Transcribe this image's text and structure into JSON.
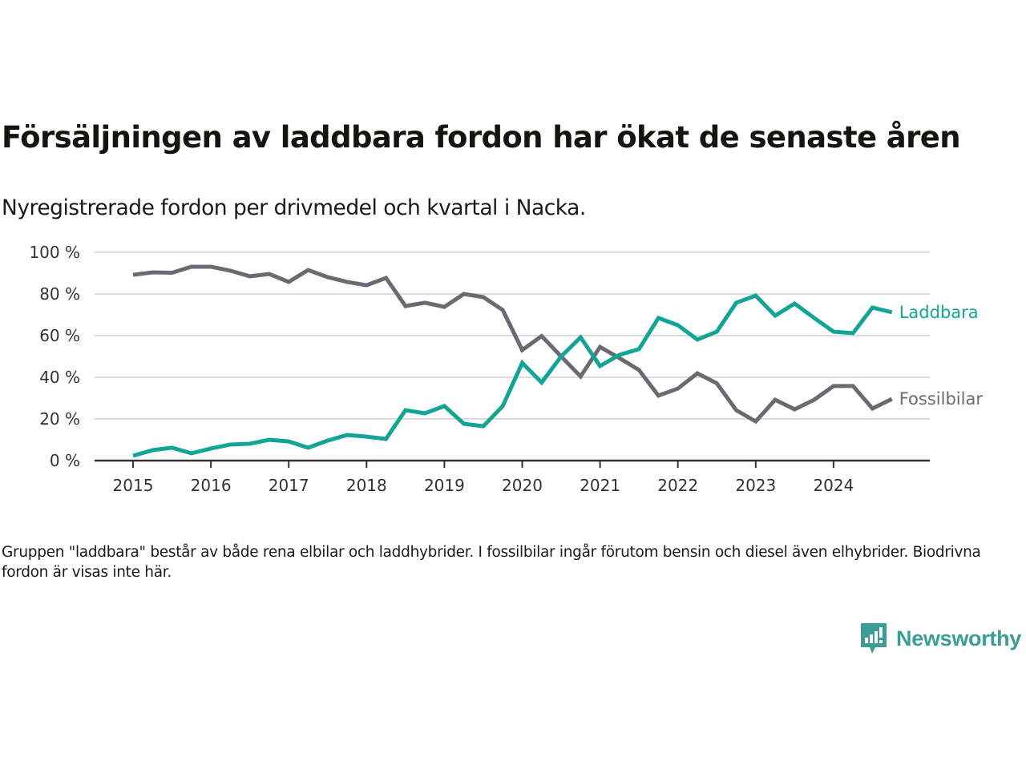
{
  "header": {
    "title": "Försäljningen av laddbara fordon har ökat de senaste åren",
    "subtitle": "Nyregistrerade fordon per drivmedel och kvartal i Nacka."
  },
  "footnote": "Gruppen \"laddbara\" består av både rena elbilar och laddhybrider. I fossilbilar ingår förutom bensin och diesel även elhybrider. Biodrivna fordon är visas inte här.",
  "logo": {
    "text": "Newsworthy",
    "icon": "newsworthy-logo-icon",
    "color": "#3a9e96"
  },
  "chart_data": {
    "type": "line",
    "title": "Försäljningen av laddbara fordon har ökat de senaste åren",
    "subtitle": "Nyregistrerade fordon per drivmedel och kvartal i Nacka.",
    "xlabel": "",
    "ylabel": "",
    "x_start": 2015,
    "x_step_per_point": 0.25,
    "x_ticks": [
      "2015",
      "2016",
      "2017",
      "2018",
      "2019",
      "2020",
      "2021",
      "2022",
      "2023",
      "2024"
    ],
    "x_range": [
      2014.5,
      2025.2
    ],
    "y_ticks": [
      "0 %",
      "20 %",
      "40 %",
      "60 %",
      "80 %",
      "100 %"
    ],
    "y_tick_values": [
      0,
      20,
      40,
      60,
      80,
      100
    ],
    "ylim": [
      0,
      100
    ],
    "grid": true,
    "legend": "inline-right",
    "series": [
      {
        "name": "Fossilbilar",
        "color": "#6b6a72",
        "values": [
          89.2,
          90.4,
          90.2,
          93.1,
          93.1,
          91.2,
          88.5,
          89.6,
          85.8,
          91.5,
          88.1,
          85.8,
          84.2,
          87.7,
          74.2,
          75.8,
          73.8,
          80.0,
          78.5,
          72.3,
          53.1,
          59.8,
          50.0,
          40.4,
          54.6,
          49.2,
          43.5,
          31.2,
          34.6,
          41.9,
          37.1,
          24.2,
          18.8,
          29.2,
          24.6,
          29.2,
          35.8,
          35.8,
          25.0,
          29.6
        ]
      },
      {
        "name": "Laddbara",
        "color": "#12a595",
        "values": [
          2.3,
          5.0,
          6.2,
          3.5,
          5.8,
          7.7,
          8.1,
          10.0,
          9.2,
          6.2,
          9.6,
          12.3,
          11.5,
          10.4,
          24.2,
          22.7,
          26.2,
          17.7,
          16.5,
          26.2,
          46.9,
          37.5,
          50.0,
          59.2,
          45.4,
          50.8,
          53.5,
          68.5,
          65.0,
          58.1,
          61.9,
          75.8,
          79.2,
          69.6,
          75.4,
          68.5,
          61.9,
          61.2,
          73.5,
          71.2
        ]
      }
    ]
  }
}
